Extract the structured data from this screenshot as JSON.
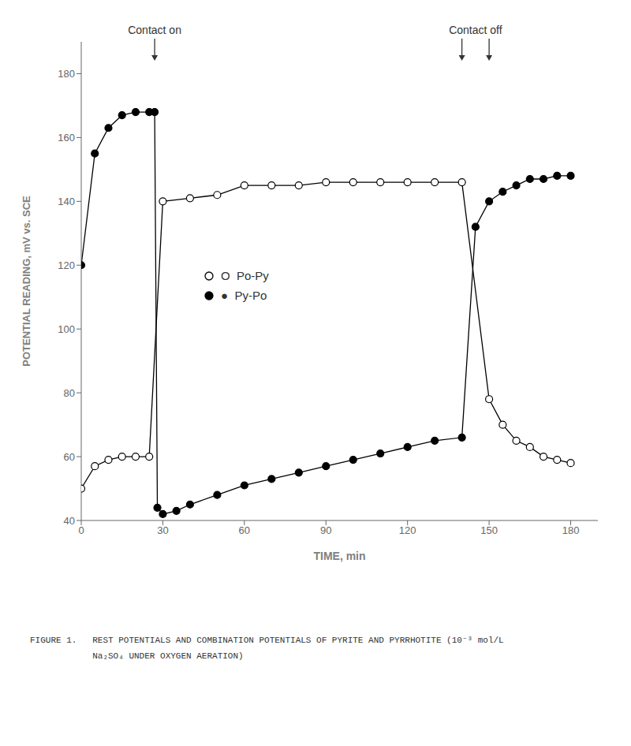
{
  "chart_data": {
    "type": "line",
    "xlabel": "TIME, min",
    "ylabel": "POTENTIAL READING, mV vs. SCE",
    "xlim": [
      0,
      190
    ],
    "ylim": [
      40,
      190
    ],
    "xticks": [
      0,
      30,
      60,
      90,
      120,
      150,
      180
    ],
    "yticks": [
      40,
      60,
      80,
      100,
      120,
      140,
      160,
      180
    ],
    "grid": false,
    "legend": "center",
    "series": [
      {
        "name": "O  Po-Py",
        "color": "black",
        "marker": "open_circle",
        "x": [
          0,
          5,
          10,
          15,
          20,
          25,
          30,
          40,
          50,
          60,
          70,
          80,
          90,
          100,
          110,
          120,
          130,
          140,
          150,
          155,
          160,
          165,
          170,
          175,
          180
        ],
        "values": [
          50,
          57,
          59,
          60,
          60,
          60,
          140,
          141,
          142,
          145,
          145,
          145,
          146,
          146,
          146,
          146,
          146,
          146,
          78,
          70,
          65,
          63,
          60,
          59,
          58
        ]
      },
      {
        "name": "●  Py-Po",
        "color": "black",
        "marker": "filled_circle",
        "x": [
          0,
          5,
          10,
          15,
          20,
          25,
          27,
          28,
          30,
          35,
          40,
          50,
          60,
          70,
          80,
          90,
          100,
          110,
          120,
          130,
          140,
          145,
          150,
          155,
          160,
          165,
          170,
          175,
          180
        ],
        "values": [
          120,
          155,
          163,
          167,
          168,
          168,
          168,
          44,
          42,
          43,
          45,
          48,
          51,
          53,
          55,
          57,
          59,
          61,
          63,
          65,
          66,
          132,
          140,
          143,
          145,
          147,
          147,
          148,
          148
        ]
      }
    ],
    "annotations": [
      {
        "text": "Contact on",
        "x": [
          27
        ]
      },
      {
        "text": "Contact off",
        "x": [
          140,
          150
        ]
      }
    ],
    "caption_lines": [
      "FIGURE 1.   REST POTENTIALS AND COMBINATION POTENTIALS OF PYRITE AND PYRRHOTITE (10⁻³ mol/L",
      "            Na₂SO₄ UNDER OXYGEN AERATION)"
    ]
  }
}
